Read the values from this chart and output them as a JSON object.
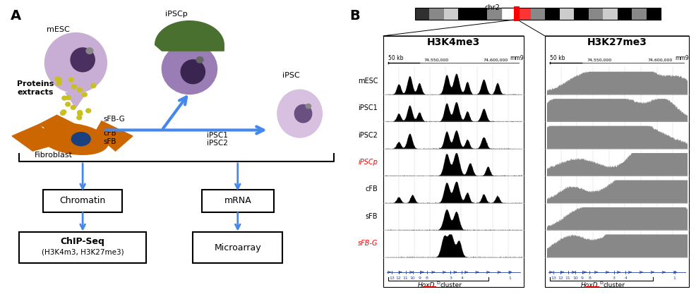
{
  "panel_A_label": "A",
  "panel_B_label": "B",
  "mesc_label": "mESC",
  "ipsc_label": "iPSC",
  "ipscp_label": "iPSCp",
  "fibroblast_label": "Fibroblast",
  "proteins_label": "Proteins\nextracts",
  "sfbg_label": "sFB-G",
  "cfb_label": "cFB",
  "sfb_label": "sFB",
  "ipsc1_label": "iPSC1",
  "ipsc2_label": "iPSC2",
  "chromatin_label": "Chromatin",
  "chipseq_label": "ChIP-Seq",
  "chipseq_sub": "(H3K4m3, H3K27me3)",
  "mrna_label": "mRNA",
  "microarray_label": "Microarray",
  "chr_label": "chr2",
  "h3k4me3_title": "H3K4me3",
  "h3k27me3_title": "H3K27me3",
  "row_labels": [
    "mESC",
    "iPSC1",
    "iPSC2",
    "iPSCp",
    "cFB",
    "sFB",
    "sFB-G"
  ],
  "red_labels": [
    "iPSCp",
    "sFB-G"
  ],
  "scale_text": "50 kb",
  "mm9_text": "mm9",
  "coord1_text": "74,550,000",
  "coord2_text": "74,600,000",
  "hoxd_text": "HoxD",
  "cluster_text": "cluster",
  "gene_numbers": [
    "13",
    "12",
    "11",
    "10",
    "9",
    "8",
    "3",
    "4",
    "1"
  ],
  "chr_segments": [
    "#303030",
    "#888888",
    "#cccccc",
    "#000000",
    "#000000",
    "#888888",
    "#ffffff",
    "#ff3333",
    "#888888",
    "#000000",
    "#cccccc",
    "#000000",
    "#888888",
    "#cccccc",
    "#000000",
    "#888888",
    "#000000"
  ],
  "red_seg_idx": 7,
  "mesc_color": "#c8aed4",
  "mesc_nuc_color": "#4a3060",
  "ipsc_color": "#d8c0e0",
  "fibro_color": "#cc6600",
  "fibro_nuc_color": "#1a4080",
  "green_cap_color": "#4a7030",
  "dot_color": "#c8c020",
  "arrow_color": "#4488ee",
  "gene_color": "#2040a0",
  "h3k4me3_color": "#000000",
  "h3k27me3_color": "#888888"
}
